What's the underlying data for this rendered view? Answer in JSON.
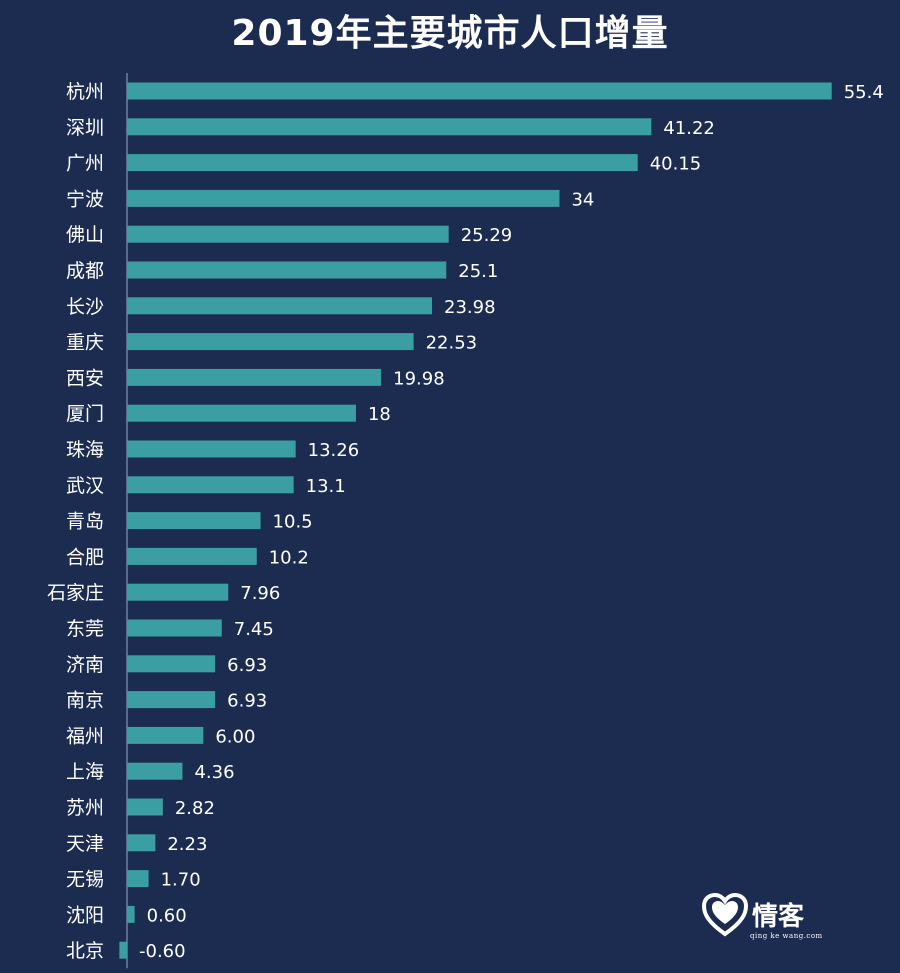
{
  "chart_data": {
    "type": "bar",
    "orientation": "horizontal",
    "title": "2019年主要城市人口增量",
    "categories": [
      "杭州",
      "深圳",
      "广州",
      "宁波",
      "佛山",
      "成都",
      "长沙",
      "重庆",
      "西安",
      "厦门",
      "珠海",
      "武汉",
      "青岛",
      "合肥",
      "石家庄",
      "东莞",
      "济南",
      "南京",
      "福州",
      "上海",
      "苏州",
      "天津",
      "无锡",
      "沈阳",
      "北京"
    ],
    "values": [
      55.4,
      41.22,
      40.15,
      34,
      25.29,
      25.1,
      23.98,
      22.53,
      19.98,
      18,
      13.26,
      13.1,
      10.5,
      10.2,
      7.96,
      7.45,
      6.93,
      6.93,
      6.0,
      4.36,
      2.82,
      2.23,
      1.7,
      0.6,
      -0.6
    ],
    "value_labels": [
      "55.4",
      "41.22",
      "40.15",
      "34",
      "25.29",
      "25.1",
      "23.98",
      "22.53",
      "19.98",
      "18",
      "13.26",
      "13.1",
      "10.5",
      "10.2",
      "7.96",
      "7.45",
      "6.93",
      "6.93",
      "6.00",
      "4.36",
      "2.82",
      "2.23",
      "1.70",
      "0.60",
      "-0.60"
    ],
    "xlim": [
      -0.6,
      55.4
    ],
    "grid": false,
    "legend": "none",
    "colors": {
      "background": "#1c2b50",
      "bar": "#3b9ea3",
      "axis": "#6f7f9e",
      "text": "#ffffff"
    }
  },
  "watermark": {
    "name": "情客",
    "sub": "qing ke wang.com",
    "icon": "heart-icon"
  }
}
